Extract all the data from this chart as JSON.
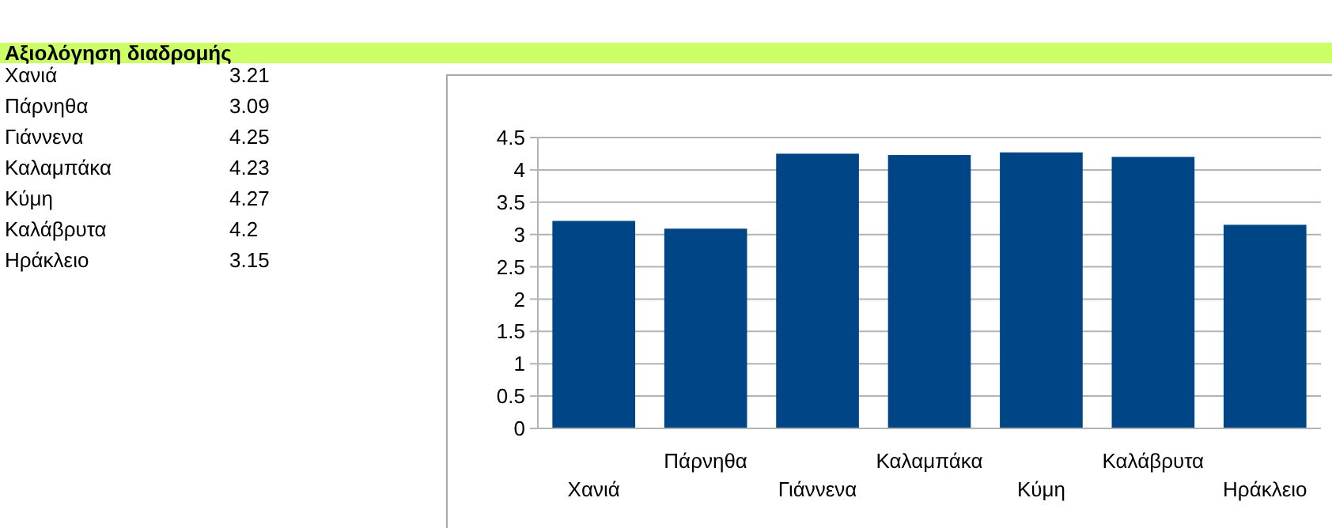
{
  "chart_data": [
    {
      "type": "other",
      "title": "Αξιολόγηση διαδρομής",
      "categories": [
        "Χανιά",
        "Πάρνηθα",
        "Γιάννενα",
        "Καλαμπάκα",
        "Κύμη",
        "Καλάβρυτα",
        "Ηράκλειο"
      ],
      "annotations": [
        "3.21",
        "3.09",
        "4.25",
        "4.23",
        "4.27",
        "4.2",
        "3.15"
      ]
    },
    {
      "type": "bar",
      "categories": [
        "Χανιά",
        "Πάρνηθα",
        "Γιάννενα",
        "Καλαμπάκα",
        "Κύμη",
        "Καλάβρυτα",
        "Ηράκλειο"
      ],
      "values": [
        3.21,
        3.09,
        4.25,
        4.23,
        4.27,
        4.2,
        3.15
      ],
      "color": "#004586",
      "ylim": [
        0,
        4.5
      ],
      "yticks": [
        0,
        0.5,
        1,
        1.5,
        2,
        2.5,
        3,
        3.5,
        4,
        4.5
      ],
      "grid": "y"
    }
  ]
}
